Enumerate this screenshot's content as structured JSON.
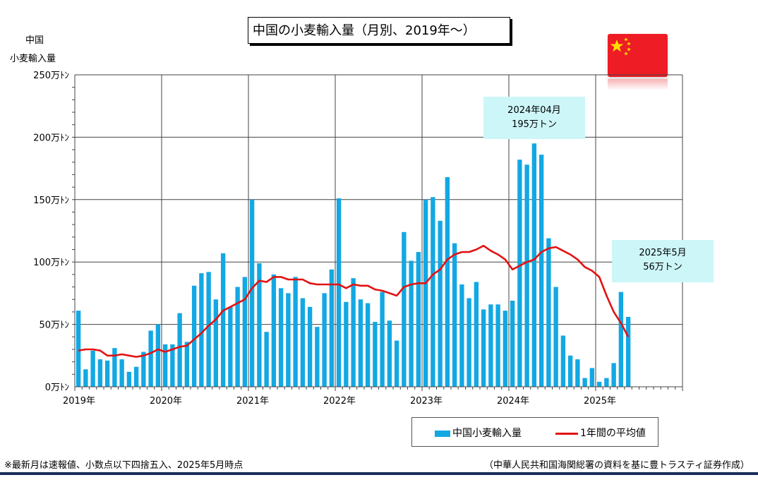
{
  "chart_data": {
    "type": "bar",
    "title": "中国の小麦輸入量（月別、2019年～）",
    "ylabel_line1": "中国",
    "ylabel_line2": "小麦輸入量",
    "ylim": [
      0,
      250
    ],
    "y_ticks": [
      {
        "value": 0,
        "label": "0万ﾄﾝ"
      },
      {
        "value": 50,
        "label": "50万ﾄﾝ"
      },
      {
        "value": 100,
        "label": "100万ﾄﾝ"
      },
      {
        "value": 150,
        "label": "150万ﾄﾝ"
      },
      {
        "value": 200,
        "label": "200万ﾄﾝ"
      },
      {
        "value": 250,
        "label": "250万ﾄﾝ"
      }
    ],
    "x_ticks": [
      "2019年",
      "2020年",
      "2021年",
      "2022年",
      "2023年",
      "2024年",
      "2025年"
    ],
    "months_axis": 84,
    "grid": true,
    "legend_position": "bottom-right",
    "series": [
      {
        "name": "中国小麦輸入量",
        "kind": "bar",
        "color": "#12a8e3",
        "values": [
          61,
          14,
          29,
          22,
          21,
          31,
          22,
          12,
          16,
          28,
          45,
          50,
          34,
          34,
          59,
          36,
          81,
          91,
          92,
          70,
          107,
          64,
          80,
          88,
          150,
          99,
          44,
          90,
          79,
          75,
          88,
          71,
          64,
          48,
          75,
          94,
          151,
          68,
          87,
          70,
          67,
          52,
          76,
          53,
          37,
          124,
          101,
          108,
          150,
          152,
          133,
          168,
          115,
          82,
          71,
          84,
          62,
          66,
          66,
          61,
          69,
          182,
          178,
          195,
          186,
          119,
          80,
          41,
          25,
          22,
          7,
          15,
          4,
          7,
          19,
          76,
          56
        ]
      },
      {
        "name": "1年間の平均値",
        "kind": "line",
        "color": "#e31212",
        "values": [
          29,
          30,
          30,
          29,
          25,
          25,
          26,
          25,
          24,
          25,
          27,
          30,
          28,
          30,
          32,
          33,
          38,
          43,
          49,
          54,
          61,
          64,
          67,
          70,
          79,
          85,
          84,
          88,
          88,
          86,
          86,
          86,
          83,
          82,
          82,
          82,
          82,
          79,
          82,
          81,
          81,
          78,
          77,
          75,
          73,
          80,
          82,
          83,
          83,
          90,
          94,
          102,
          106,
          108,
          108,
          110,
          113,
          109,
          106,
          102,
          94,
          97,
          100,
          102,
          108,
          111,
          112,
          109,
          106,
          102,
          96,
          93,
          88,
          73,
          60,
          51,
          40
        ]
      }
    ],
    "annotations": [
      {
        "line1": "2024年04月",
        "line2": "195万トン"
      },
      {
        "line1": "2025年5月",
        "line2": "56万トン"
      }
    ]
  },
  "footnote_left": "※最新月は速報値、小数点以下四捨五入、2025年5月時点",
  "footnote_right": "（中華人民共和国海関総署の資料を基に豊トラスティ証券作成）",
  "flag": {
    "country": "China",
    "color": "#ee1c25",
    "star_color": "#ffde00"
  }
}
